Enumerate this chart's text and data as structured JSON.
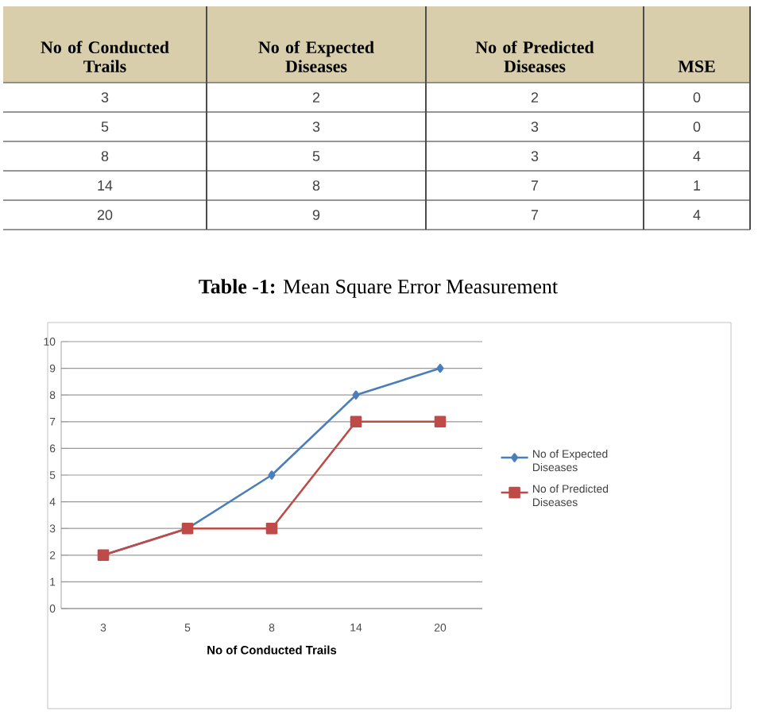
{
  "chart_data": [
    {
      "type": "other",
      "annotations": [
        "No of Conducted Trails",
        "No of Expected Diseases",
        "No of Predicted Diseases",
        "MSE",
        "3",
        "2",
        "2",
        "0",
        "5",
        "3",
        "3",
        "0",
        "8",
        "5",
        "3",
        "4",
        "14",
        "8",
        "7",
        "1",
        "20",
        "9",
        "7",
        "4",
        "**Table -1:** Mean Square Error Measurement"
      ]
    },
    {
      "type": "line",
      "categories": [
        "3",
        "5",
        "8",
        "14",
        "20"
      ],
      "xlabel": "No of Conducted Trails",
      "series": [
        {
          "name": "No of Expected Diseases",
          "color": "#4a7ebb",
          "values": [
            2,
            3,
            5,
            8,
            9
          ],
          "marker": "diamond"
        },
        {
          "name": "No of Predicted Diseases",
          "color": "#be4b48",
          "values": [
            2,
            3,
            3,
            7,
            7
          ],
          "marker": "square"
        }
      ],
      "ylim": [
        0,
        10
      ],
      "yticks": [
        0,
        1,
        2,
        3,
        4,
        5,
        6,
        7,
        8,
        9,
        10
      ],
      "grid": "y",
      "legend": "right"
    }
  ]
}
